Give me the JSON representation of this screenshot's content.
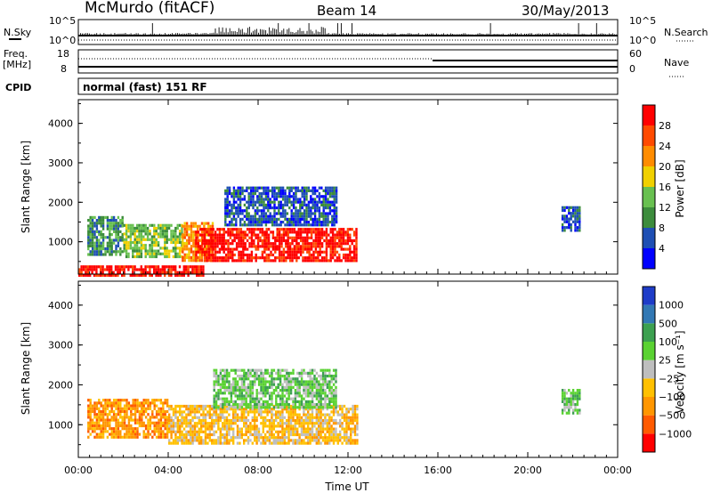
{
  "header": {
    "station": "McMurdo (fitACF)",
    "beam": "Beam 14",
    "date": "30/May/2013",
    "cpid": "normal (fast) 151 RF"
  },
  "strips": {
    "nsky_label": "N.Sky",
    "nsky_ticks": [
      "10^5",
      "10^0"
    ],
    "nsearch_label": "N.Search",
    "nsearch_ticks": [
      "10^5",
      "10^0"
    ],
    "freq_label": "Freq.",
    "freq_unit": "[MHz]",
    "freq_ticks": [
      "18",
      "8"
    ],
    "nave_label": "Nave",
    "nave_ticks": [
      "60",
      "0"
    ],
    "cpid_label": "CPID"
  },
  "colors": {
    "power": [
      "#0000ff",
      "#1e4fb4",
      "#3c8c3c",
      "#68c050",
      "#f0d000",
      "#ff8c00",
      "#ff4a00",
      "#ff0000"
    ],
    "velocity": [
      "#ff0000",
      "#ff5a00",
      "#ff9600",
      "#ffc000",
      "#bebebe",
      "#5ad232",
      "#3ca050",
      "#3278b4",
      "#1e3cc8"
    ]
  },
  "chart_data": [
    {
      "type": "heatmap",
      "name": "power",
      "ylabel": "Slant Range [km]",
      "yticks": [
        "4000",
        "3000",
        "2000",
        "1000"
      ],
      "ylim": [
        180,
        4600
      ],
      "xlim": [
        0,
        24
      ],
      "xticks": [
        "00:00",
        "04:00",
        "08:00",
        "12:00",
        "16:00",
        "20:00",
        "00:00"
      ],
      "colorbar_label": "Power [dB]",
      "colorbar_ticks": [
        "28",
        "24",
        "20",
        "16",
        "12",
        "8",
        "4"
      ],
      "colorbar_range": [
        0,
        32
      ],
      "regions": [
        {
          "t0": 0.4,
          "t1": 2.0,
          "r0": 700,
          "r1": 1650,
          "level": 2
        },
        {
          "t0": 2.0,
          "t1": 4.6,
          "r0": 650,
          "r1": 1450,
          "level": 3
        },
        {
          "t0": 4.6,
          "t1": 6.0,
          "r0": 500,
          "r1": 1500,
          "level": 5
        },
        {
          "t0": 5.2,
          "t1": 12.4,
          "r0": 550,
          "r1": 1350,
          "level": 7
        },
        {
          "t0": 6.5,
          "t1": 11.5,
          "r0": 1450,
          "r1": 2400,
          "level": 1
        },
        {
          "t0": 0.0,
          "t1": 5.6,
          "r0": 180,
          "r1": 400,
          "level": 7
        },
        {
          "t0": 21.5,
          "t1": 22.3,
          "r0": 1300,
          "r1": 1900,
          "level": 1
        }
      ]
    },
    {
      "type": "heatmap",
      "name": "velocity",
      "ylabel": "Slant Range [km]",
      "yticks": [
        "4000",
        "3000",
        "2000",
        "1000"
      ],
      "ylim": [
        180,
        4600
      ],
      "xlim": [
        0,
        24
      ],
      "xticks": [
        "00:00",
        "04:00",
        "08:00",
        "12:00",
        "16:00",
        "20:00",
        "00:00"
      ],
      "xlabel": "Time UT",
      "colorbar_label": "Velocity [m s⁻¹]",
      "colorbar_ticks": [
        "1000",
        "500",
        "100",
        "25",
        "−25",
        "−100",
        "−500",
        "−1000"
      ],
      "regions": [
        {
          "t0": 0.4,
          "t1": 4.0,
          "r0": 650,
          "r1": 1650,
          "level": 2
        },
        {
          "t0": 4.0,
          "t1": 12.4,
          "r0": 550,
          "r1": 1500,
          "level": 3
        },
        {
          "t0": 6.0,
          "t1": 11.5,
          "r0": 1400,
          "r1": 2400,
          "level": 5
        },
        {
          "t0": 21.5,
          "t1": 22.3,
          "r0": 1300,
          "r1": 1900,
          "level": 5
        }
      ]
    }
  ]
}
